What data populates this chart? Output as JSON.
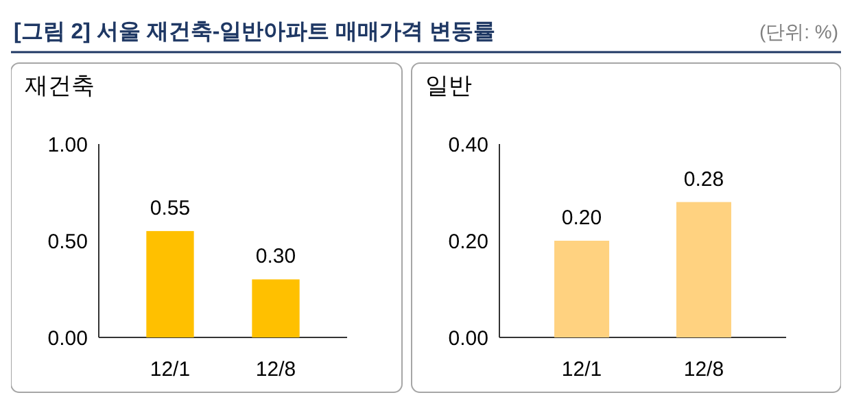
{
  "chart_data": [
    {
      "type": "bar",
      "title": "[그림 2] 서울 재건축-일반아파트 매매가격 변동률",
      "subtitle": "재건축",
      "annotations": [
        "(단위: %)"
      ],
      "categories": [
        "12/1",
        "12/8"
      ],
      "values": [
        0.55,
        0.3
      ],
      "value_labels": [
        "0.55",
        "0.30"
      ],
      "color": "#ffc000",
      "ylim": [
        0,
        1
      ],
      "yticks": [
        {
          "value": 0,
          "label": "0.00"
        },
        {
          "value": 0.5,
          "label": "0.50"
        },
        {
          "value": 1,
          "label": "1.00"
        }
      ],
      "grid": false
    },
    {
      "type": "bar",
      "title": "일반",
      "categories": [
        "12/1",
        "12/8"
      ],
      "values": [
        0.2,
        0.28
      ],
      "value_labels": [
        "0.20",
        "0.28"
      ],
      "color": "#ffd280",
      "ylim": [
        0,
        0.4
      ],
      "yticks": [
        {
          "value": 0,
          "label": "0.00"
        },
        {
          "value": 0.2,
          "label": "0.20"
        },
        {
          "value": 0.4,
          "label": "0.40"
        }
      ],
      "grid": false
    }
  ]
}
